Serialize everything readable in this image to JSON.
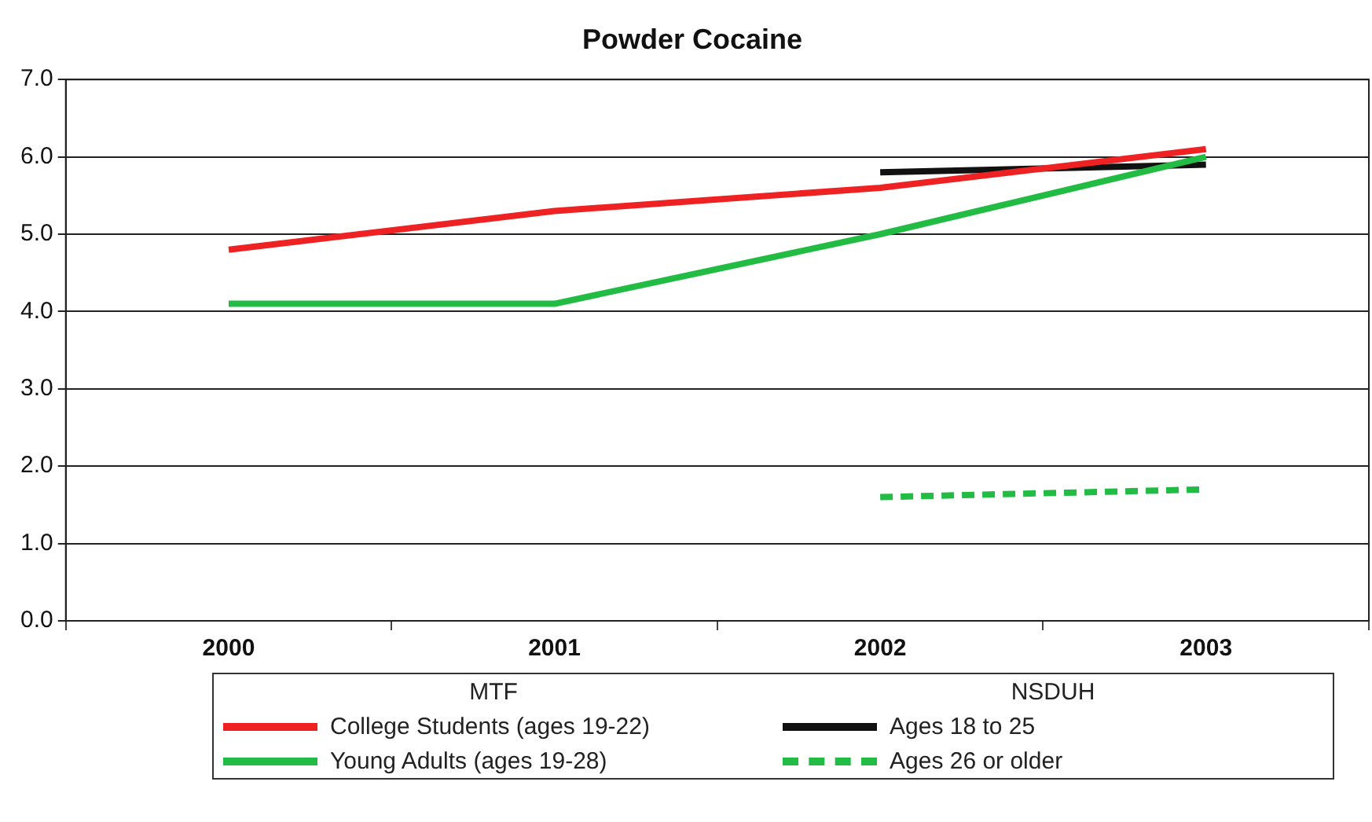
{
  "chart_data": {
    "type": "line",
    "title": "Powder Cocaine",
    "categories": [
      "2000",
      "2001",
      "2002",
      "2003"
    ],
    "series": [
      {
        "name": "College Students (ages 19-22)",
        "color": "#ee2222",
        "values": [
          4.8,
          5.3,
          5.6,
          6.1
        ]
      },
      {
        "name": "Young Adults (ages 19-28)",
        "color": "#22bb44",
        "values": [
          4.1,
          4.1,
          5.0,
          6.0
        ]
      },
      {
        "name": "Ages 18 to 25",
        "color": "#111111",
        "values": [
          null,
          null,
          5.8,
          5.9
        ]
      },
      {
        "name": "Ages 26 or older",
        "color": "#22bb44",
        "line_style": "dashed",
        "values": [
          null,
          null,
          1.6,
          1.7
        ]
      }
    ],
    "ylim": [
      0,
      7
    ],
    "yticks": [
      {
        "value": 0,
        "label": "0.0"
      },
      {
        "value": 1,
        "label": "1.0"
      },
      {
        "value": 2,
        "label": "2.0"
      },
      {
        "value": 3,
        "label": "3.0"
      },
      {
        "value": 4,
        "label": "4.0"
      },
      {
        "value": 5,
        "label": "5.0"
      },
      {
        "value": 6,
        "label": "6.0"
      },
      {
        "value": 7,
        "label": "7.0"
      }
    ],
    "grid": "y",
    "legend": "bottom",
    "marker": "none",
    "line_style": "solid",
    "annotations": [
      "MTF",
      "NSDUH"
    ]
  }
}
